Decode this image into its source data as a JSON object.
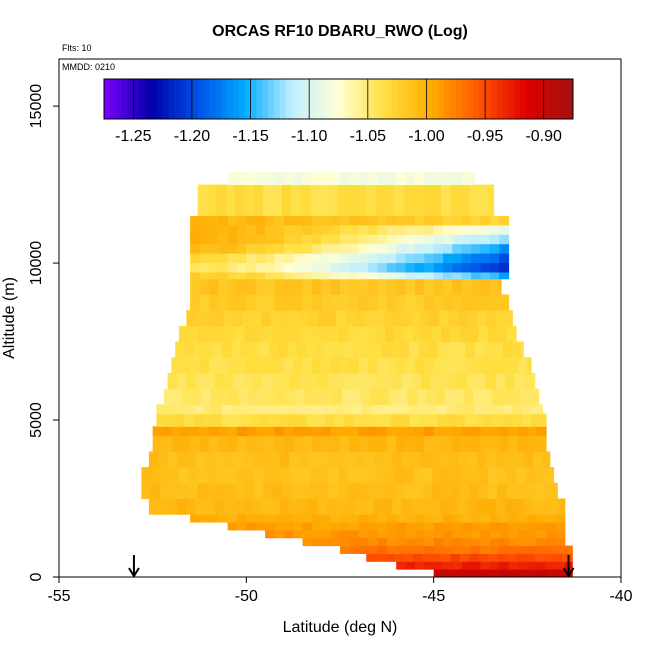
{
  "chart_data": {
    "type": "heatmap",
    "title": "ORCAS RF10 DBARU_RWO (Log)",
    "subtitle_flights": "Flts: 10",
    "subtitle_date": "MMDD: 0210",
    "xlabel": "Latitude (deg N)",
    "ylabel": "Altitude (m)",
    "xlim": [
      -55,
      -40
    ],
    "ylim": [
      0,
      16500
    ],
    "x_ticks": [
      "-55",
      "-50",
      "-45",
      "-40"
    ],
    "y_ticks": [
      "0",
      "5000",
      "10000",
      "15000"
    ],
    "x_tick_values": [
      -55,
      -50,
      -45,
      -40
    ],
    "y_tick_values": [
      0,
      5000,
      10000,
      15000
    ],
    "colorbar": {
      "range": [
        -1.275,
        -0.875
      ],
      "tick_values": [
        -1.25,
        -1.2,
        -1.15,
        -1.1,
        -1.05,
        -1.0,
        -0.95,
        -0.9
      ],
      "tick_labels": [
        "-1.25",
        "-1.20",
        "-1.15",
        "-1.10",
        "-1.05",
        "-1.00",
        "-0.95",
        "-0.90"
      ],
      "colors": [
        "#7F00FF",
        "#0000AA",
        "#0050E6",
        "#00AAFF",
        "#BFEFFF",
        "#FFFFD5",
        "#FFDF40",
        "#FFAA00",
        "#FF5500",
        "#E00000",
        "#A01010"
      ]
    },
    "altitude_bands": [
      {
        "z0": 0,
        "z1": 250,
        "lat_min": -45,
        "lat_max": -41.3,
        "value": -0.9
      },
      {
        "z0": 250,
        "z1": 500,
        "lat_min": -46,
        "lat_max": -41.3,
        "value": -0.93
      },
      {
        "z0": 500,
        "z1": 750,
        "lat_min": -46.8,
        "lat_max": -41.3,
        "value": -0.95
      },
      {
        "z0": 750,
        "z1": 1000,
        "lat_min": -47.5,
        "lat_max": -41.3,
        "value": -0.97
      },
      {
        "z0": 1000,
        "z1": 1250,
        "lat_min": -48.5,
        "lat_max": -41.5,
        "value": -0.98
      },
      {
        "z0": 1250,
        "z1": 1500,
        "lat_min": -49.5,
        "lat_max": -41.5,
        "value": -0.985
      },
      {
        "z0": 1500,
        "z1": 1750,
        "lat_min": -50.5,
        "lat_max": -41.5,
        "value": -0.99
      },
      {
        "z0": 1750,
        "z1": 2000,
        "lat_min": -51.5,
        "lat_max": -41.5,
        "value": -1.0
      },
      {
        "z0": 2000,
        "z1": 2500,
        "lat_min": -52.6,
        "lat_max": -41.5,
        "value": -1.005
      },
      {
        "z0": 2500,
        "z1": 3000,
        "lat_min": -52.8,
        "lat_max": -41.7,
        "value": -1.01
      },
      {
        "z0": 3000,
        "z1": 3500,
        "lat_min": -52.8,
        "lat_max": -41.8,
        "value": -1.012
      },
      {
        "z0": 3500,
        "z1": 4000,
        "lat_min": -52.6,
        "lat_max": -41.9,
        "value": -1.01
      },
      {
        "z0": 4000,
        "z1": 4500,
        "lat_min": -52.5,
        "lat_max": -42.0,
        "value": -1.005
      },
      {
        "z0": 4500,
        "z1": 4800,
        "lat_min": -52.5,
        "lat_max": -42.0,
        "value": -0.99
      },
      {
        "z0": 4800,
        "z1": 5200,
        "lat_min": -52.4,
        "lat_max": -42.0,
        "value": -1.035
      },
      {
        "z0": 5200,
        "z1": 5500,
        "lat_min": -52.4,
        "lat_max": -42.1,
        "value": -1.05
      },
      {
        "z0": 5500,
        "z1": 6000,
        "lat_min": -52.2,
        "lat_max": -42.2,
        "value": -1.045
      },
      {
        "z0": 6000,
        "z1": 6500,
        "lat_min": -52.1,
        "lat_max": -42.3,
        "value": -1.04
      },
      {
        "z0": 6500,
        "z1": 7000,
        "lat_min": -52.0,
        "lat_max": -42.4,
        "value": -1.037
      },
      {
        "z0": 7000,
        "z1": 7500,
        "lat_min": -51.9,
        "lat_max": -42.6,
        "value": -1.035
      },
      {
        "z0": 7500,
        "z1": 8000,
        "lat_min": -51.8,
        "lat_max": -42.8,
        "value": -1.03
      },
      {
        "z0": 8000,
        "z1": 8500,
        "lat_min": -51.6,
        "lat_max": -42.9,
        "value": -1.025
      },
      {
        "z0": 8500,
        "z1": 9000,
        "lat_min": -51.5,
        "lat_max": -43.0,
        "value": -1.02
      },
      {
        "z0": 9000,
        "z1": 9500,
        "lat_min": -51.5,
        "lat_max": -43.2,
        "value": -1.015
      },
      {
        "z0": 11500,
        "z1": 12500,
        "lat_min": -51.3,
        "lat_max": -43.4,
        "value": -1.035
      },
      {
        "z0": 12500,
        "z1": 12900,
        "lat_min": -50.5,
        "lat_max": -43.9,
        "value": -1.08
      }
    ],
    "upper_feature": {
      "z_top": 11500,
      "z_bottom": 9500,
      "lat_min": -51.5,
      "lat_max": -43.0,
      "rows": [
        {
          "z0": 11200,
          "z1": 11500,
          "start": -1.005,
          "end": -1.03
        },
        {
          "z0": 10900,
          "z1": 11200,
          "start": -1.0,
          "end": -1.09
        },
        {
          "z0": 10600,
          "z1": 10900,
          "start": -1.0,
          "end": -1.13
        },
        {
          "z0": 10300,
          "z1": 10600,
          "start": -1.005,
          "end": -1.17
        },
        {
          "z0": 10000,
          "z1": 10300,
          "start": -1.03,
          "end": -1.2
        },
        {
          "z0": 9700,
          "z1": 10000,
          "start": -1.04,
          "end": -1.22
        },
        {
          "z0": 9500,
          "z1": 9700,
          "start": -1.02,
          "end": -1.16
        }
      ]
    },
    "markers": [
      {
        "lat": -53,
        "label": "arrow"
      },
      {
        "lat": -41.4,
        "label": "arrow"
      }
    ]
  }
}
